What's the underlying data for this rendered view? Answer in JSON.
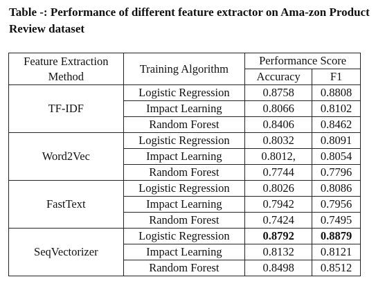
{
  "caption": {
    "label": "Table",
    "separator": "-:",
    "text": "Performance of different feature extractor on Ama-zon Product Review dataset"
  },
  "table": {
    "header": {
      "method_line1": "Feature Extraction",
      "method_line2": "Method",
      "algorithm": "Training Algorithm",
      "score_group": "Performance Score",
      "accuracy": "Accuracy",
      "f1": "F1"
    },
    "groups": [
      {
        "method": "TF-IDF",
        "rows": [
          {
            "algorithm": "Logistic Regression",
            "accuracy": "0.8758",
            "f1": "0.8808"
          },
          {
            "algorithm": "Impact Learning",
            "accuracy": "0.8066",
            "f1": "0.8102"
          },
          {
            "algorithm": "Random Forest",
            "accuracy": "0.8406",
            "f1": "0.8462"
          }
        ]
      },
      {
        "method": "Word2Vec",
        "rows": [
          {
            "algorithm": "Logistic Regression",
            "accuracy": "0.8032",
            "f1": "0.8091"
          },
          {
            "algorithm": "Impact Learning",
            "accuracy": "0.8012,",
            "f1": "0.8054"
          },
          {
            "algorithm": "Random Forest",
            "accuracy": "0.7744",
            "f1": "0.7796"
          }
        ]
      },
      {
        "method": "FastText",
        "rows": [
          {
            "algorithm": "Logistic Regression",
            "accuracy": "0.8026",
            "f1": "0.8086"
          },
          {
            "algorithm": "Impact Learning",
            "accuracy": "0.7942",
            "f1": "0.7956"
          },
          {
            "algorithm": "Random Forest",
            "accuracy": "0.7424",
            "f1": "0.7495"
          }
        ]
      },
      {
        "method": "SeqVectorizer",
        "rows": [
          {
            "algorithm": "Logistic Regression",
            "accuracy": "0.8792",
            "f1": "0.8879",
            "bold": true
          },
          {
            "algorithm": "Impact Learning",
            "accuracy": "0.8132",
            "f1": "0.8121"
          },
          {
            "algorithm": "Random Forest",
            "accuracy": "0.8498",
            "f1": "0.8512"
          }
        ]
      }
    ]
  }
}
